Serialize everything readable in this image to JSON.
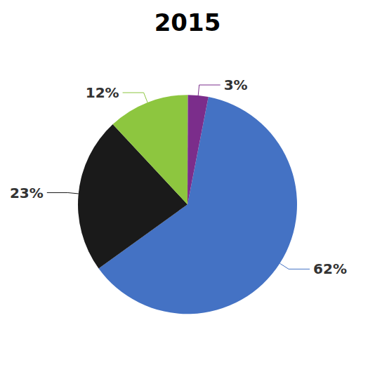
{
  "chart_data": {
    "type": "pie",
    "title": "2015",
    "values": [
      62,
      23,
      12,
      3
    ],
    "value_labels": [
      "62%",
      "23%",
      "12%",
      "3%"
    ],
    "colors": [
      "#4472C4",
      "#1a1a1a",
      "#8DC63F",
      "#7B2D8B"
    ],
    "data_labels": true
  }
}
